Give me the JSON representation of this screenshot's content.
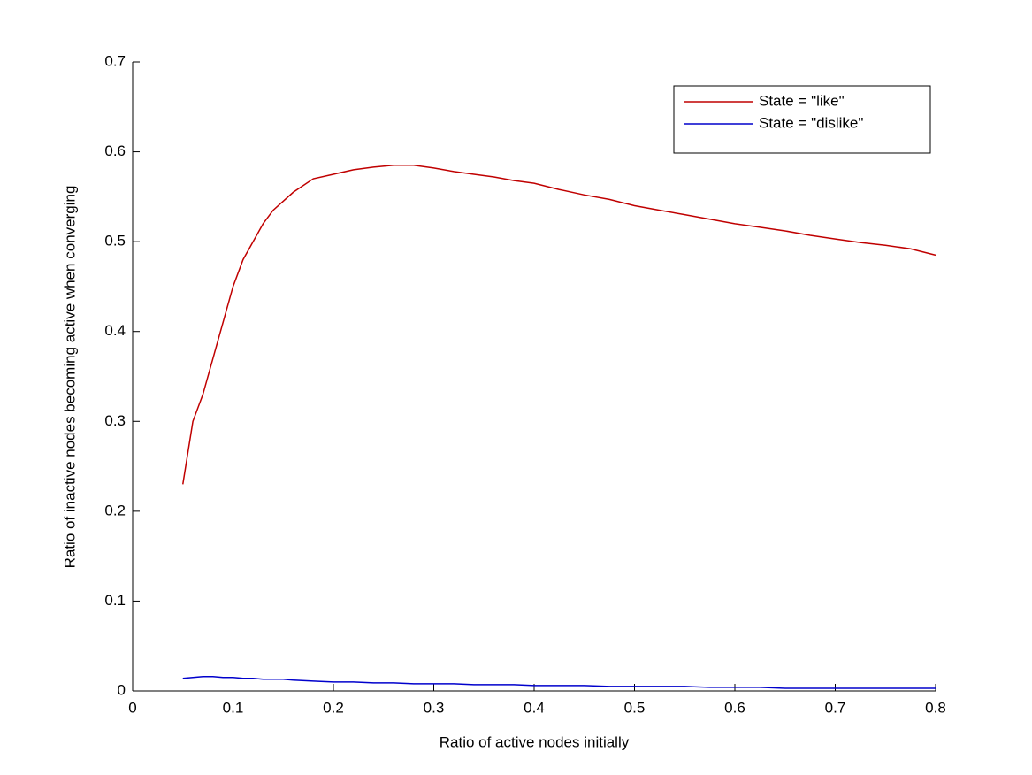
{
  "chart_data": {
    "type": "line",
    "x_label": "Ratio of active nodes initially",
    "y_label": "Ratio of inactive nodes becoming active when converging",
    "x": [
      0.05,
      0.06,
      0.07,
      0.08,
      0.09,
      0.1,
      0.11,
      0.12,
      0.13,
      0.14,
      0.15,
      0.16,
      0.18,
      0.2,
      0.22,
      0.24,
      0.26,
      0.28,
      0.3,
      0.32,
      0.34,
      0.36,
      0.38,
      0.4,
      0.425,
      0.45,
      0.475,
      0.5,
      0.525,
      0.55,
      0.575,
      0.6,
      0.625,
      0.65,
      0.675,
      0.7,
      0.725,
      0.75,
      0.775,
      0.8
    ],
    "series": [
      {
        "name": "State = \"like\"",
        "color": "#c00000",
        "values": [
          0.23,
          0.3,
          0.33,
          0.37,
          0.41,
          0.45,
          0.48,
          0.5,
          0.52,
          0.535,
          0.545,
          0.555,
          0.57,
          0.575,
          0.58,
          0.583,
          0.585,
          0.585,
          0.582,
          0.578,
          0.575,
          0.572,
          0.568,
          0.565,
          0.558,
          0.552,
          0.547,
          0.54,
          0.535,
          0.53,
          0.525,
          0.52,
          0.516,
          0.512,
          0.507,
          0.503,
          0.499,
          0.496,
          0.492,
          0.485
        ]
      },
      {
        "name": "State = \"dislike\"",
        "color": "#0000cc",
        "values": [
          0.014,
          0.015,
          0.016,
          0.016,
          0.015,
          0.015,
          0.014,
          0.014,
          0.013,
          0.013,
          0.013,
          0.012,
          0.011,
          0.01,
          0.01,
          0.009,
          0.009,
          0.008,
          0.008,
          0.008,
          0.007,
          0.007,
          0.007,
          0.006,
          0.006,
          0.006,
          0.005,
          0.005,
          0.005,
          0.005,
          0.004,
          0.004,
          0.004,
          0.003,
          0.003,
          0.003,
          0.003,
          0.003,
          0.003,
          0.003
        ]
      }
    ],
    "xlim": [
      0,
      0.8
    ],
    "xticks": [
      0,
      0.1,
      0.2,
      0.3,
      0.4,
      0.5,
      0.6,
      0.7,
      0.8
    ],
    "ylim": [
      0,
      0.7
    ],
    "yticks": [
      0,
      0.1,
      0.2,
      0.3,
      0.4,
      0.5,
      0.6,
      0.7
    ],
    "legend_position": "upper right"
  }
}
